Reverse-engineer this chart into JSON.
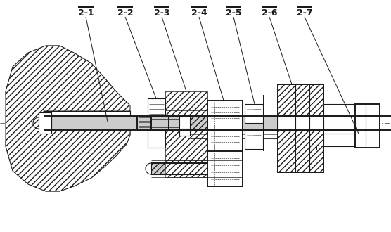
{
  "labels": [
    "2-1",
    "2-2",
    "2-3",
    "2-4",
    "2-5",
    "2-6",
    "2-7"
  ],
  "line_color": "#1a1a1a",
  "bg_color": "#ffffff",
  "lw": 0.8,
  "tlw": 1.4
}
